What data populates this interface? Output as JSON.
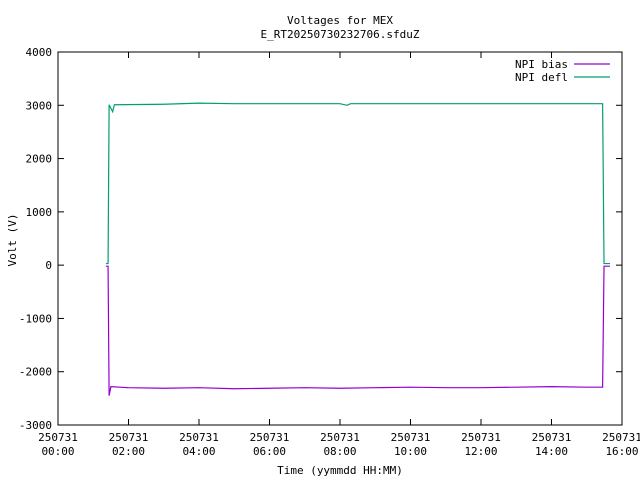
{
  "chart_data": {
    "type": "line",
    "title": "Voltages for MEX",
    "subtitle": "E_RT20250730232706.sfduZ",
    "x_label": "Time (yymmdd HH:MM)",
    "y_label": "Volt (V)",
    "xlim": [
      0,
      16
    ],
    "xticks": [
      {
        "value": 0,
        "label": [
          "250731",
          "00:00"
        ]
      },
      {
        "value": 2,
        "label": [
          "250731",
          "02:00"
        ]
      },
      {
        "value": 4,
        "label": [
          "250731",
          "04:00"
        ]
      },
      {
        "value": 6,
        "label": [
          "250731",
          "06:00"
        ]
      },
      {
        "value": 8,
        "label": [
          "250731",
          "08:00"
        ]
      },
      {
        "value": 10,
        "label": [
          "250731",
          "10:00"
        ]
      },
      {
        "value": 12,
        "label": [
          "250731",
          "12:00"
        ]
      },
      {
        "value": 14,
        "label": [
          "250731",
          "14:00"
        ]
      },
      {
        "value": 16,
        "label": [
          "250731",
          "16:00"
        ]
      }
    ],
    "ylim": [
      -3000,
      4000
    ],
    "yticks": [
      -3000,
      -2000,
      -1000,
      0,
      1000,
      2000,
      3000,
      4000
    ],
    "grid": false,
    "legend": "top-right",
    "series": [
      {
        "name": "NPI bias",
        "color": "#9400d3",
        "x": [
          1.36,
          1.42,
          1.45,
          1.5,
          2,
          3,
          4,
          5,
          6,
          7,
          8,
          9,
          10,
          11,
          12,
          13,
          14,
          15,
          15.45,
          15.49,
          15.66
        ],
        "values": [
          -20,
          -20,
          -2450,
          -2280,
          -2300,
          -2310,
          -2300,
          -2320,
          -2310,
          -2300,
          -2310,
          -2300,
          -2290,
          -2300,
          -2300,
          -2290,
          -2280,
          -2290,
          -2290,
          -20,
          -20
        ]
      },
      {
        "name": "NPI defl",
        "color": "#009e73",
        "x": [
          1.36,
          1.42,
          1.45,
          1.55,
          1.6,
          3,
          4,
          5,
          6,
          7,
          8,
          8.2,
          8.3,
          9,
          10,
          11,
          12,
          13,
          14,
          15,
          15.45,
          15.49,
          15.66
        ],
        "values": [
          30,
          30,
          3010,
          2880,
          3010,
          3020,
          3040,
          3030,
          3030,
          3030,
          3030,
          3000,
          3030,
          3030,
          3030,
          3030,
          3030,
          3030,
          3030,
          3030,
          3030,
          30,
          30
        ]
      }
    ]
  }
}
